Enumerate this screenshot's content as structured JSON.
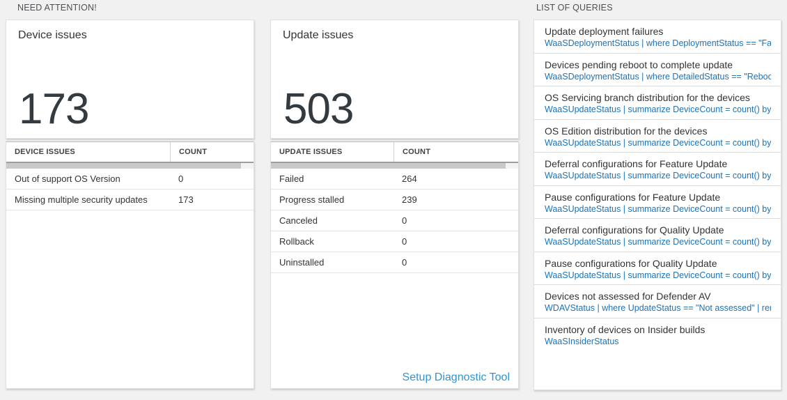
{
  "sections": {
    "need_attention": "NEED ATTENTION!",
    "list_of_queries": "LIST OF QUERIES"
  },
  "device_issues": {
    "tile_title": "Device issues",
    "big_count": "173",
    "table": {
      "headers": [
        "DEVICE ISSUES",
        "COUNT"
      ],
      "rows": [
        [
          "Out of support OS Version",
          "0"
        ],
        [
          "Missing multiple security updates",
          "173"
        ]
      ]
    }
  },
  "update_issues": {
    "tile_title": "Update issues",
    "big_count": "503",
    "table": {
      "headers": [
        "UPDATE ISSUES",
        "COUNT"
      ],
      "rows": [
        [
          "Failed",
          "264"
        ],
        [
          "Progress stalled",
          "239"
        ],
        [
          "Canceled",
          "0"
        ],
        [
          "Rollback",
          "0"
        ],
        [
          "Uninstalled",
          "0"
        ]
      ]
    },
    "footer_link": "Setup Diagnostic Tool"
  },
  "queries": {
    "items": [
      {
        "title": "Update deployment failures",
        "query": "WaaSDeploymentStatus | where DeploymentStatus == \"Failed\" |..."
      },
      {
        "title": "Devices pending reboot to complete update",
        "query": "WaaSDeploymentStatus | where DetailedStatus == \"Reboot pend..."
      },
      {
        "title": "OS Servicing branch distribution for the devices",
        "query": "WaaSUpdateStatus | summarize DeviceCount = count() by OSSer..."
      },
      {
        "title": "OS Edition distribution for the devices",
        "query": "WaaSUpdateStatus | summarize DeviceCount = count() by OSEdit..."
      },
      {
        "title": "Deferral configurations for Feature Update",
        "query": "WaaSUpdateStatus | summarize DeviceCount = count() by Featur..."
      },
      {
        "title": "Pause configurations for Feature Update",
        "query": "WaaSUpdateStatus | summarize DeviceCount = count() by Featur..."
      },
      {
        "title": "Deferral configurations for Quality Update",
        "query": "WaaSUpdateStatus | summarize DeviceCount = count() by Qualit..."
      },
      {
        "title": "Pause configurations for Quality Update",
        "query": "WaaSUpdateStatus | summarize DeviceCount = count() by Qualit..."
      },
      {
        "title": "Devices not assessed for Defender AV",
        "query": "WDAVStatus | where UpdateStatus == \"Not assessed\" | render ta..."
      },
      {
        "title": "Inventory of devices on Insider builds",
        "query": "WaaSInsiderStatus"
      }
    ]
  },
  "colors": {
    "page_background": "#f1f1f1",
    "query_link_blue": "#1973bc",
    "setup_link_blue": "#2e95d3",
    "big_number_color": "#333a40"
  }
}
